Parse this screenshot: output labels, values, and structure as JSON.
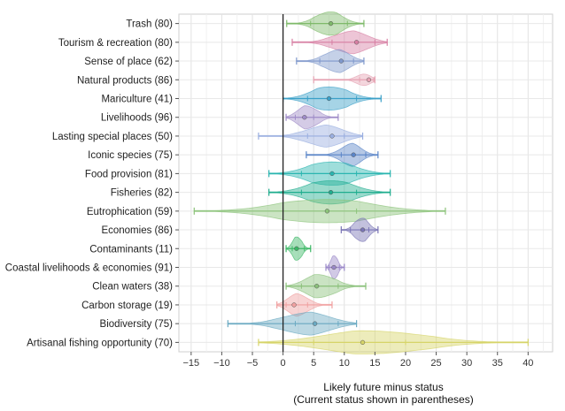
{
  "chart_data": {
    "type": "violin",
    "orientation": "horizontal",
    "xlabel": "Likely future minus status",
    "xlabel_sub": "(Current status shown in parentheses)",
    "xlim": [
      -17,
      44
    ],
    "xticks": [
      -15,
      -10,
      -5,
      0,
      5,
      10,
      15,
      20,
      25,
      30,
      35,
      40
    ],
    "grid": true,
    "categories": [
      {
        "label": "Trash (80)",
        "color": "#7fba6a",
        "min": 0.6,
        "max": 13.2,
        "median": 7.8,
        "q1": 4.5,
        "q3": 10.5,
        "spread": 5.5
      },
      {
        "label": "Tourism &  recreation (80)",
        "color": "#d77fa3",
        "min": 1.5,
        "max": 17.0,
        "median": 12.0,
        "q1": 8.0,
        "q3": 15.0,
        "spread": 7.5
      },
      {
        "label": "Sense of place (62)",
        "color": "#7f98cc",
        "min": 2.2,
        "max": 13.2,
        "median": 9.5,
        "q1": 6.0,
        "q3": 11.5,
        "spread": 5.5
      },
      {
        "label": "Natural products (86)",
        "color": "#e6a3b3",
        "min": 5.0,
        "max": 15.0,
        "median": 14.0,
        "q1": 12.5,
        "q3": 14.8,
        "spread": 3.0
      },
      {
        "label": "Mariculture (41)",
        "color": "#3aa0c8",
        "min": 0.0,
        "max": 16.0,
        "median": 7.5,
        "q1": 4.0,
        "q3": 12.0,
        "spread": 8.0
      },
      {
        "label": "Livelihoods (96)",
        "color": "#9f8cc8",
        "min": 0.5,
        "max": 9.0,
        "median": 3.5,
        "q1": 2.0,
        "q3": 5.0,
        "spread": 4.5
      },
      {
        "label": "Lasting special places (50)",
        "color": "#99aee0",
        "min": -4.0,
        "max": 13.0,
        "median": 8.0,
        "q1": 4.0,
        "q3": 10.0,
        "spread": 8.0
      },
      {
        "label": "Iconic species (75)",
        "color": "#5a85c8",
        "min": 3.8,
        "max": 15.5,
        "median": 11.5,
        "q1": 9.5,
        "q3": 13.5,
        "spread": 4.0
      },
      {
        "label": "Food provision (81)",
        "color": "#2ab5b0",
        "min": -2.3,
        "max": 17.5,
        "median": 8.0,
        "q1": 3.0,
        "q3": 12.0,
        "spread": 10.0
      },
      {
        "label": "Fisheries (82)",
        "color": "#1fad8e",
        "min": -2.3,
        "max": 17.5,
        "median": 7.8,
        "q1": 3.0,
        "q3": 12.0,
        "spread": 10.0
      },
      {
        "label": "Eutrophication (59)",
        "color": "#8cc37a",
        "min": -14.5,
        "max": 26.5,
        "median": 7.2,
        "q1": 0.0,
        "q3": 12.0,
        "spread": 20.0
      },
      {
        "label": "Economies (86)",
        "color": "#7a75b5",
        "min": 9.5,
        "max": 15.5,
        "median": 13.0,
        "q1": 11.0,
        "q3": 14.0,
        "spread": 3.0
      },
      {
        "label": "Contaminants (11)",
        "color": "#3cb866",
        "min": 0.5,
        "max": 4.5,
        "median": 2.2,
        "q1": 1.5,
        "q3": 3.5,
        "spread": 2.0
      },
      {
        "label": "Coastal livelihoods & economies (91)",
        "color": "#9a88c8",
        "min": 7.0,
        "max": 10.0,
        "median": 8.3,
        "q1": 7.5,
        "q3": 9.2,
        "spread": 1.5
      },
      {
        "label": "Clean waters (38)",
        "color": "#8ac07a",
        "min": 0.5,
        "max": 13.5,
        "median": 5.5,
        "q1": 3.0,
        "q3": 9.0,
        "spread": 6.5
      },
      {
        "label": "Carbon storage (19)",
        "color": "#f0a0a0",
        "min": -1.0,
        "max": 8.0,
        "median": 1.8,
        "q1": 0.5,
        "q3": 4.0,
        "spread": 4.5
      },
      {
        "label": "Biodiversity (75)",
        "color": "#6aa9c2",
        "min": -9.0,
        "max": 12.0,
        "median": 5.2,
        "q1": 2.0,
        "q3": 9.0,
        "spread": 10.5
      },
      {
        "label": "Artisanal fishing opportunity (70)",
        "color": "#d6d468",
        "min": -4.0,
        "max": 40.0,
        "median": 13.0,
        "q1": 5.0,
        "q3": 20.0,
        "spread": 22.0
      }
    ]
  }
}
